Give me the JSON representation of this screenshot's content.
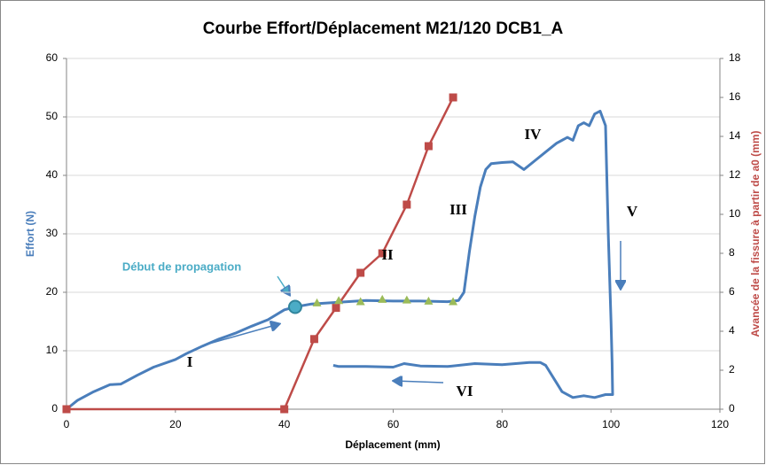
{
  "chart_data": {
    "type": "line",
    "title": "Courbe Effort/Déplacement  M21/120 DCB1_A",
    "x_label": "Déplacement (mm)",
    "y_label": "Effort (N)",
    "y2_label": "Avancée de la fissure à partir de a0 (mm)",
    "xlim": [
      0,
      120
    ],
    "xticks": [
      0,
      20,
      40,
      60,
      80,
      100,
      120
    ],
    "ylim": [
      0,
      60
    ],
    "yticks": [
      0,
      10,
      20,
      30,
      40,
      50,
      60
    ],
    "y2lim": [
      0,
      18
    ],
    "y2ticks": [
      0,
      2,
      4,
      6,
      8,
      10,
      12,
      14,
      16,
      18
    ],
    "grid": true,
    "series": [
      {
        "color": "#4a7ebb",
        "axis": "y",
        "marker": "none",
        "x": [
          0,
          2,
          5,
          8,
          10,
          13,
          16,
          20,
          22,
          25,
          28,
          31,
          34,
          37,
          40,
          42,
          45,
          50,
          55,
          60,
          65,
          70,
          72,
          73,
          74,
          75,
          76,
          77,
          78,
          80,
          82,
          84,
          86,
          88,
          90,
          92,
          93,
          94,
          95,
          96,
          97,
          98,
          99,
          99.5,
          100,
          100.2,
          100.3,
          99,
          97,
          95,
          93,
          91,
          90,
          88,
          87,
          85,
          80,
          75,
          70,
          65,
          62,
          60,
          55,
          50,
          49
        ],
        "values": [
          0,
          1.5,
          3,
          4.2,
          4.3,
          5.8,
          7.2,
          8.5,
          9.5,
          10.8,
          12,
          13,
          14.2,
          15.3,
          17,
          17.5,
          18,
          18.3,
          18.6,
          18.5,
          18.5,
          18.4,
          18.6,
          20,
          27,
          33,
          38,
          41,
          42,
          42.2,
          42.3,
          41,
          42.5,
          44,
          45.5,
          46.5,
          46,
          48.5,
          49,
          48.5,
          50.5,
          51,
          48.5,
          30,
          15,
          8,
          2.5,
          2.5,
          2,
          2.3,
          2,
          3,
          4.5,
          7.5,
          8,
          8,
          7.6,
          7.8,
          7.3,
          7.4,
          7.8,
          7.2,
          7.3,
          7.3,
          7.5
        ]
      },
      {
        "color": "#be4b48",
        "axis": "y2",
        "marker": "square",
        "x": [
          0,
          40,
          45.5,
          49.5,
          54,
          58,
          62.5,
          66.5,
          71
        ],
        "values": [
          0,
          0,
          3.6,
          5.2,
          7,
          8,
          10.5,
          13.5,
          16
        ]
      },
      {
        "color": "#9bbb59",
        "axis": "y",
        "marker": "triangle",
        "line": false,
        "x": [
          46,
          50,
          54,
          58,
          62.5,
          66.5,
          71
        ],
        "values": [
          18.2,
          18.6,
          18.4,
          18.8,
          18.7,
          18.5,
          18.4
        ]
      },
      {
        "color": "#4bacc6",
        "axis": "y",
        "marker": "circle",
        "line": false,
        "x": [
          42
        ],
        "values": [
          17.5
        ]
      }
    ],
    "annotations": [
      "Début de propagation",
      "I",
      "II",
      "III",
      "IV",
      "V",
      "VI"
    ]
  }
}
